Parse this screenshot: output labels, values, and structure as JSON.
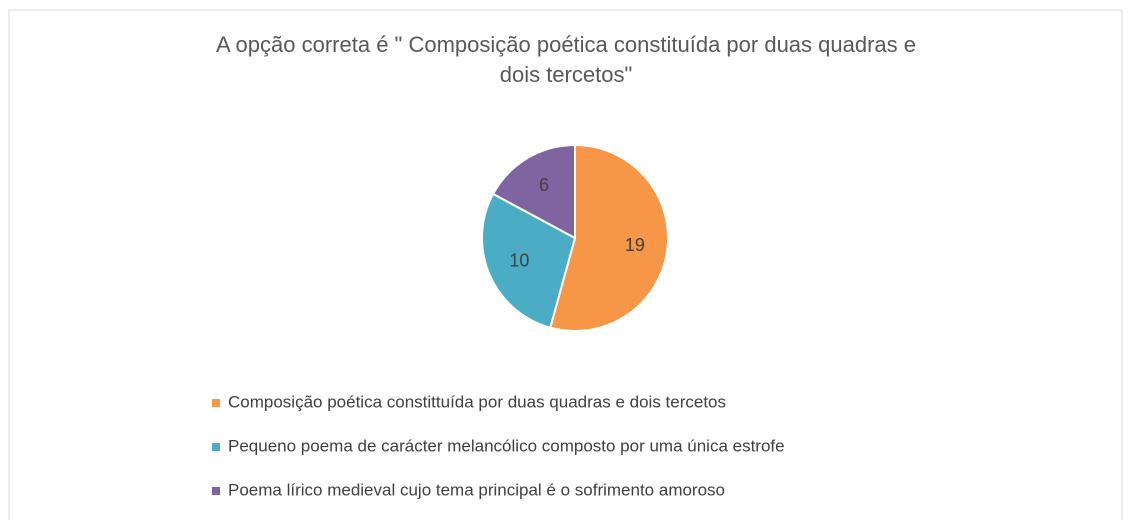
{
  "chart_data": {
    "type": "pie",
    "title": "A opção correta é \" Composição poética constituída por duas quadras e dois tercetos\"",
    "categories": [
      "Composição poética constittuída por duas quadras e dois tercetos",
      "Pequeno poema de carácter melancólico composto por uma única estrofe",
      "Poema lírico medieval cujo tema principal é o sofrimento amoroso"
    ],
    "values": [
      19,
      10,
      6
    ],
    "colors": [
      "#F79646",
      "#4BACC6",
      "#8064A2"
    ],
    "legend": "bottom"
  }
}
